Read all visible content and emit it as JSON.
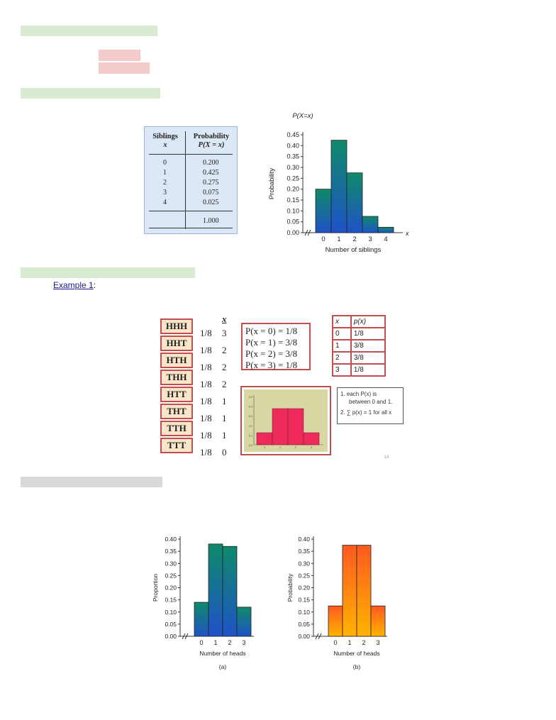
{
  "example_label": "Example 1",
  "example_colon": ":",
  "siblings_table": {
    "headers": [
      [
        "Siblings",
        "x"
      ],
      [
        "Probability",
        "P(X = x)"
      ]
    ],
    "x": [
      "0",
      "1",
      "2",
      "3",
      "4"
    ],
    "p": [
      "0.200",
      "0.425",
      "0.275",
      "0.075",
      "0.025"
    ],
    "total": "1.000"
  },
  "chart_data": [
    {
      "type": "bar",
      "title": "P(X=x)",
      "xlabel": "Number of siblings",
      "ylabel": "Probability",
      "x_axis_letter": "x",
      "categories": [
        "0",
        "1",
        "2",
        "3",
        "4"
      ],
      "values": [
        0.2,
        0.425,
        0.275,
        0.075,
        0.025
      ],
      "ylim": [
        0,
        0.45
      ],
      "yticks": [
        "0.00",
        "0.05",
        "0.10",
        "0.15",
        "0.20",
        "0.25",
        "0.30",
        "0.35",
        "0.40",
        "0.45"
      ],
      "colors": [
        "#0f8a6a",
        "#1f52c8"
      ]
    },
    {
      "type": "bar",
      "title": "",
      "xlabel": "",
      "ylabel": "",
      "categories": [
        "0",
        "1",
        "2",
        "3"
      ],
      "values": [
        0.125,
        0.375,
        0.375,
        0.125
      ],
      "ylim": [
        0,
        0.5
      ],
      "yticks": [
        "0.0",
        "0.1",
        "0.2",
        "0.3",
        "0.4",
        "0.5"
      ],
      "colors": [
        "#ee2a5c"
      ]
    },
    {
      "type": "bar",
      "title": "(a)",
      "xlabel": "Number of heads",
      "ylabel": "Proportion",
      "categories": [
        "0",
        "1",
        "2",
        "3"
      ],
      "values": [
        0.14,
        0.38,
        0.37,
        0.12
      ],
      "ylim": [
        0,
        0.4
      ],
      "yticks": [
        "0.00",
        "0.05",
        "0.10",
        "0.15",
        "0.20",
        "0.25",
        "0.30",
        "0.35",
        "0.40"
      ],
      "colors": [
        "#0f8a6a",
        "#1f52c8"
      ]
    },
    {
      "type": "bar",
      "title": "(b)",
      "xlabel": "Number of heads",
      "ylabel": "Probability",
      "categories": [
        "0",
        "1",
        "2",
        "3"
      ],
      "values": [
        0.125,
        0.375,
        0.375,
        0.125
      ],
      "ylim": [
        0,
        0.4
      ],
      "yticks": [
        "0.00",
        "0.05",
        "0.10",
        "0.15",
        "0.20",
        "0.25",
        "0.30",
        "0.35",
        "0.40"
      ],
      "colors": [
        "#ff5a1f",
        "#ffb300"
      ]
    }
  ],
  "tree": {
    "x_header": "x",
    "outcomes": [
      "HHH",
      "HHT",
      "HTH",
      "THH",
      "HTT",
      "THT",
      "TTH",
      "TTT"
    ],
    "probs": [
      "1/8",
      "1/8",
      "1/8",
      "1/8",
      "1/8",
      "1/8",
      "1/8",
      "1/8"
    ],
    "xs": [
      "3",
      "2",
      "2",
      "2",
      "1",
      "1",
      "1",
      "0"
    ]
  },
  "prob_lines": [
    "P(x = 0) =  1/8",
    "P(x = 1) =  3/8",
    "P(x = 2) =  3/8",
    "P(x = 3) =  1/8"
  ],
  "px_table": {
    "header": [
      "x",
      "p(x)"
    ],
    "rows": [
      [
        "0",
        "1/8"
      ],
      [
        "1",
        "3/8"
      ],
      [
        "2",
        "3/8"
      ],
      [
        "3",
        "1/8"
      ]
    ]
  },
  "notes": {
    "line1": "1.  each P(x) is",
    "line2": "between 0 and 1.",
    "line3": "2. ∑ p(x) = 1  for all x"
  },
  "page_number": "14",
  "colors": {
    "highlight_green": "#d9ead3",
    "highlight_pink": "#f4cccc",
    "highlight_gray": "#d9d9d9",
    "accent_red": "#c0504d"
  }
}
